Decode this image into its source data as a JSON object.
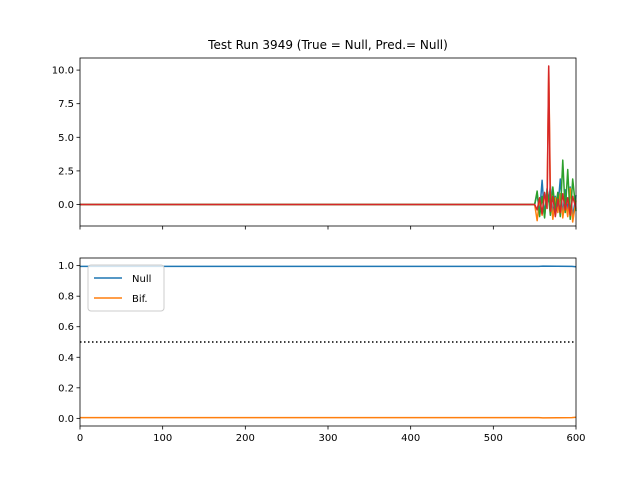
{
  "chart_data": [
    {
      "type": "line",
      "title": "Test Run 3949 (True = Null, Pred.= Null)",
      "xlim": [
        0,
        600
      ],
      "ylim": [
        -1.6,
        10.9
      ],
      "yticks": [
        0.0,
        2.5,
        5.0,
        7.5,
        10.0
      ],
      "ytick_labels": [
        "0.0",
        "2.5",
        "5.0",
        "7.5",
        "10.0"
      ],
      "xticks": [
        0,
        100,
        200,
        300,
        400,
        500,
        600
      ],
      "xtick_labels_visible": false,
      "grid": false,
      "legend": null,
      "series": [
        {
          "color": "#1f77b4",
          "x": [
            0,
            550,
            553,
            556,
            559,
            562,
            565,
            567,
            569,
            572,
            575,
            578,
            581,
            584,
            587,
            590,
            593,
            596,
            600
          ],
          "y": [
            0,
            0,
            0.8,
            -0.6,
            1.8,
            -0.9,
            1.2,
            0.2,
            1.4,
            -0.7,
            0.6,
            -0.3,
            1.9,
            -0.8,
            1.1,
            -0.5,
            1.3,
            -0.9,
            0.7
          ]
        },
        {
          "color": "#ff7f0e",
          "x": [
            0,
            550,
            553,
            556,
            559,
            562,
            565,
            567,
            569,
            572,
            575,
            578,
            581,
            584,
            587,
            590,
            593,
            596,
            600
          ],
          "y": [
            0,
            0,
            -1.2,
            0.4,
            -0.8,
            0.7,
            0.3,
            10.2,
            0.9,
            -1.1,
            0.5,
            -0.6,
            0.8,
            -1.0,
            0.4,
            -0.9,
            1.2,
            -1.3,
            0.3
          ]
        },
        {
          "color": "#2ca02c",
          "x": [
            0,
            550,
            553,
            556,
            559,
            562,
            565,
            567,
            569,
            572,
            575,
            578,
            581,
            584,
            587,
            590,
            593,
            596,
            600
          ],
          "y": [
            0,
            0,
            1.0,
            -0.9,
            0.6,
            -1.0,
            1.1,
            0.4,
            -0.8,
            1.3,
            -0.4,
            0.9,
            -0.9,
            3.3,
            -0.6,
            2.6,
            -1.1,
            1.9,
            -0.5
          ]
        },
        {
          "color": "#d62728",
          "x": [
            0,
            550,
            553,
            556,
            559,
            562,
            565,
            567,
            569,
            572,
            575,
            578,
            581,
            584,
            587,
            590,
            593,
            596,
            600
          ],
          "y": [
            0,
            0,
            -0.4,
            0.5,
            -0.7,
            0.9,
            -0.3,
            10.3,
            -0.5,
            0.6,
            -0.9,
            0.4,
            -0.6,
            0.8,
            -0.4,
            0.5,
            -0.8,
            0.6,
            -0.3
          ]
        }
      ]
    },
    {
      "type": "line",
      "xlim": [
        0,
        600
      ],
      "ylim": [
        -0.05,
        1.05
      ],
      "yticks": [
        0.0,
        0.2,
        0.4,
        0.6,
        0.8,
        1.0
      ],
      "ytick_labels": [
        "0.0",
        "0.2",
        "0.4",
        "0.6",
        "0.8",
        "1.0"
      ],
      "xticks": [
        0,
        100,
        200,
        300,
        400,
        500,
        600
      ],
      "xtick_labels": [
        "0",
        "100",
        "200",
        "300",
        "400",
        "500",
        "600"
      ],
      "grid": false,
      "legend": {
        "position": "upper-left",
        "entries": [
          "Null",
          "Bif."
        ]
      },
      "threshold": {
        "y": 0.5,
        "style": "dotted",
        "color": "#000000"
      },
      "series": [
        {
          "name": "Null",
          "color": "#1f77b4",
          "x": [
            0,
            555,
            560,
            595,
            600
          ],
          "y": [
            0.995,
            0.995,
            0.997,
            0.995,
            0.993
          ]
        },
        {
          "name": "Bif.",
          "color": "#ff7f0e",
          "x": [
            0,
            555,
            560,
            595,
            600
          ],
          "y": [
            0.005,
            0.005,
            0.003,
            0.005,
            0.007
          ]
        }
      ]
    }
  ]
}
